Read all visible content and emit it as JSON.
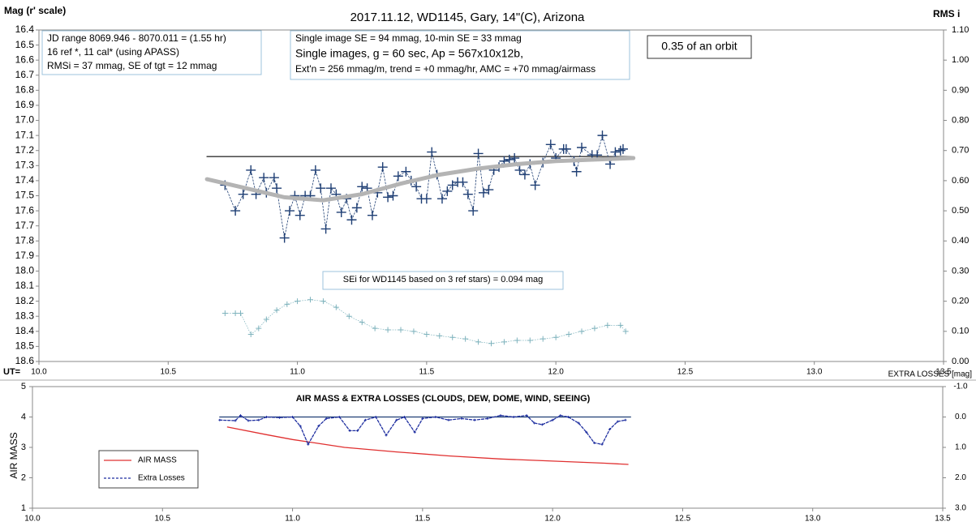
{
  "chart_data": [
    {
      "type": "scatter",
      "title": "2017.11.12,  WD1145, Gary, 14\"(C), Arizona",
      "ylabel": "Mag (r' scale)",
      "y2label": "RMS i",
      "xlabel": "UT=",
      "xlim": [
        10,
        13.5
      ],
      "xticks": [
        {
          "value": 10,
          "label": "10.0"
        },
        10.5,
        {
          "value": 11,
          "label": "11.0"
        },
        11.5,
        {
          "value": 12,
          "label": "12.0"
        },
        12.5,
        {
          "value": 13,
          "label": "13.0"
        },
        13.5
      ],
      "ylim": [
        18.6,
        16.4
      ],
      "yticks": [
        16.4,
        16.5,
        16.6,
        16.7,
        16.8,
        16.9,
        {
          "value": 17,
          "label": "17.0"
        },
        17.1,
        17.2,
        17.3,
        17.4,
        17.5,
        17.6,
        17.7,
        17.8,
        17.9,
        {
          "value": 18,
          "label": "18.0"
        },
        18.1,
        18.2,
        18.3,
        18.4,
        18.5,
        18.6
      ],
      "y2lim": [
        0,
        1.1
      ],
      "y2ticks": [
        {
          "value": 0,
          "label": "0.00"
        },
        {
          "value": 0.1,
          "label": "0.10"
        },
        {
          "value": 0.2,
          "label": "0.20"
        },
        {
          "value": 0.3,
          "label": "0.30"
        },
        {
          "value": 0.4,
          "label": "0.40"
        },
        {
          "value": 0.5,
          "label": "0.50"
        },
        {
          "value": 0.6,
          "label": "0.60"
        },
        {
          "value": 0.7,
          "label": "0.70"
        },
        {
          "value": 0.8,
          "label": "0.80"
        },
        {
          "value": 0.9,
          "label": "0.90"
        },
        {
          "value": 1,
          "label": "1.00"
        },
        {
          "value": 1.1,
          "label": "1.10"
        }
      ],
      "annotations": [
        [
          "JD range  8069.946 - 8070.011 = (1.55 hr)",
          "16 ref *, 11 cal* (using APASS)",
          "RMSi = 37 mmag, SE of tgt = 12 mmag"
        ],
        [
          "Single image SE = 94 mmag, 10-min SE = 33 mmag",
          "Single images, g = 60 sec, Ap = 567x10x12b,",
          "Ext'n = 256 mmag/m, trend = +0 mmag/hr, AMC = +70 mmag/airmass"
        ],
        [
          "0.35 of an orbit"
        ],
        [
          "SEi for WD1145 based on 3 ref stars) = 0.094 mag"
        ]
      ],
      "series": [
        {
          "mode": "line",
          "color": "#333333",
          "x": [
            10.65,
            12.3
          ],
          "values": [
            17.24,
            17.24
          ]
        },
        {
          "mode": "plus-dashed",
          "color": "#1f3f74",
          "x": [
            10.72,
            10.76,
            10.79,
            10.82,
            10.84,
            10.87,
            10.88,
            10.91,
            10.92,
            10.95,
            10.97,
            10.99,
            11.01,
            11.03,
            11.05,
            11.07,
            11.09,
            11.11,
            11.13,
            11.15,
            11.17,
            11.19,
            11.21,
            11.23,
            11.25,
            11.27,
            11.29,
            11.31,
            11.33,
            11.35,
            11.37,
            11.39,
            11.42,
            11.44,
            11.46,
            11.48,
            11.5,
            11.52,
            11.54,
            11.56,
            11.58,
            11.6,
            11.62,
            11.64,
            11.66,
            11.68,
            11.7,
            11.72,
            11.74,
            11.76,
            11.78,
            11.8,
            11.82,
            11.84,
            11.86,
            11.88,
            11.9,
            11.92,
            11.95,
            11.98,
            12.0,
            12.03,
            12.04,
            12.07,
            12.08,
            12.1,
            12.14,
            12.16,
            12.18,
            12.21,
            12.23,
            12.25,
            12.26
          ],
          "values": [
            17.43,
            17.6,
            17.49,
            17.33,
            17.49,
            17.38,
            17.48,
            17.38,
            17.45,
            17.78,
            17.6,
            17.5,
            17.63,
            17.5,
            17.5,
            17.33,
            17.45,
            17.72,
            17.45,
            17.49,
            17.61,
            17.52,
            17.66,
            17.58,
            17.44,
            17.45,
            17.63,
            17.48,
            17.31,
            17.51,
            17.5,
            17.37,
            17.34,
            17.4,
            17.44,
            17.52,
            17.52,
            17.21,
            17.36,
            17.52,
            17.47,
            17.43,
            17.41,
            17.41,
            17.49,
            17.6,
            17.22,
            17.48,
            17.46,
            17.33,
            17.31,
            17.27,
            17.26,
            17.25,
            17.33,
            17.36,
            17.29,
            17.43,
            17.28,
            17.16,
            17.25,
            17.19,
            17.19,
            17.27,
            17.34,
            17.18,
            17.23,
            17.23,
            17.1,
            17.29,
            17.21,
            17.2,
            17.19
          ]
        },
        {
          "mode": "thick-line",
          "color": "#b4b4b4",
          "x": [
            10.65,
            10.8,
            10.95,
            11.1,
            11.25,
            11.4,
            11.55,
            11.7,
            11.85,
            12.0,
            12.15,
            12.3
          ],
          "values": [
            17.39,
            17.45,
            17.51,
            17.53,
            17.49,
            17.42,
            17.36,
            17.32,
            17.29,
            17.27,
            17.26,
            17.25
          ]
        },
        {
          "mode": "small-plus-dotted",
          "color": "#7fb3bd",
          "axis": "y2",
          "x": [
            10.72,
            10.76,
            10.78,
            10.82,
            10.85,
            10.88,
            10.92,
            10.96,
            11.0,
            11.05,
            11.1,
            11.15,
            11.2,
            11.25,
            11.3,
            11.35,
            11.4,
            11.45,
            11.5,
            11.55,
            11.6,
            11.65,
            11.7,
            11.75,
            11.8,
            11.85,
            11.9,
            11.95,
            12.0,
            12.05,
            12.1,
            12.15,
            12.2,
            12.25,
            12.27
          ],
          "values": [
            0.16,
            0.16,
            0.16,
            0.09,
            0.11,
            0.14,
            0.17,
            0.19,
            0.2,
            0.205,
            0.2,
            0.18,
            0.15,
            0.13,
            0.11,
            0.105,
            0.105,
            0.1,
            0.09,
            0.085,
            0.08,
            0.075,
            0.065,
            0.06,
            0.065,
            0.07,
            0.07,
            0.075,
            0.08,
            0.09,
            0.1,
            0.11,
            0.12,
            0.12,
            0.1
          ]
        }
      ]
    },
    {
      "type": "line",
      "title": "AIR MASS & EXTRA LOSSES (CLOUDS, DEW, DOME, WIND, SEEING)",
      "ylabel": "AIR MASS",
      "y2label": "EXTRA LOSSES [mag]",
      "legend": "left",
      "xlim": [
        10,
        13.5
      ],
      "xticks": [
        {
          "value": 10,
          "label": "10.0"
        },
        10.5,
        {
          "value": 11,
          "label": "11.0"
        },
        11.5,
        {
          "value": 12,
          "label": "12.0"
        },
        12.5,
        {
          "value": 13,
          "label": "13.0"
        },
        13.5
      ],
      "ylim": [
        1,
        5
      ],
      "yticks": [
        1,
        2,
        3,
        4,
        5
      ],
      "y2lim": [
        3,
        -1
      ],
      "y2ticks": [
        {
          "value": -1,
          "label": "-1.0"
        },
        {
          "value": 0,
          "label": "0.0"
        },
        {
          "value": 1,
          "label": "1.0"
        },
        {
          "value": 2,
          "label": "2.0"
        },
        {
          "value": 3,
          "label": "3.0"
        }
      ],
      "series": [
        {
          "mode": "line",
          "color": "#1f3f74",
          "axis": "y2",
          "x": [
            10.72,
            12.3
          ],
          "values": [
            0,
            0
          ]
        },
        {
          "name": "AIR MASS",
          "mode": "line",
          "color": "#e03030",
          "x": [
            10.75,
            10.9,
            11.0,
            11.1,
            11.2,
            11.4,
            11.6,
            11.8,
            12.0,
            12.2,
            12.29
          ],
          "values": [
            3.67,
            3.42,
            3.26,
            3.13,
            3.0,
            2.85,
            2.72,
            2.62,
            2.55,
            2.48,
            2.44
          ]
        },
        {
          "name": "Extra Losses",
          "mode": "dashed-line",
          "color": "#1f2fa0",
          "axis": "y2",
          "x": [
            10.72,
            10.78,
            10.8,
            10.83,
            10.87,
            10.9,
            10.95,
            11.0,
            11.03,
            11.06,
            11.1,
            11.13,
            11.18,
            11.22,
            11.25,
            11.28,
            11.32,
            11.36,
            11.4,
            11.43,
            11.47,
            11.5,
            11.55,
            11.6,
            11.65,
            11.7,
            11.75,
            11.8,
            11.85,
            11.9,
            11.93,
            11.96,
            12.0,
            12.03,
            12.06,
            12.1,
            12.13,
            12.16,
            12.19,
            12.22,
            12.25,
            12.28
          ],
          "values": [
            0.1,
            0.12,
            -0.05,
            0.12,
            0.1,
            0,
            0.02,
            0,
            0.3,
            0.9,
            0.3,
            0.05,
            0,
            0.45,
            0.45,
            0.1,
            0,
            0.6,
            0.1,
            0,
            0.5,
            0.05,
            0,
            0.1,
            0.05,
            0.1,
            0.05,
            -0.05,
            0,
            -0.05,
            0.2,
            0.25,
            0.1,
            -0.05,
            0,
            0.2,
            0.5,
            0.85,
            0.9,
            0.4,
            0.15,
            0.1
          ]
        }
      ]
    }
  ]
}
